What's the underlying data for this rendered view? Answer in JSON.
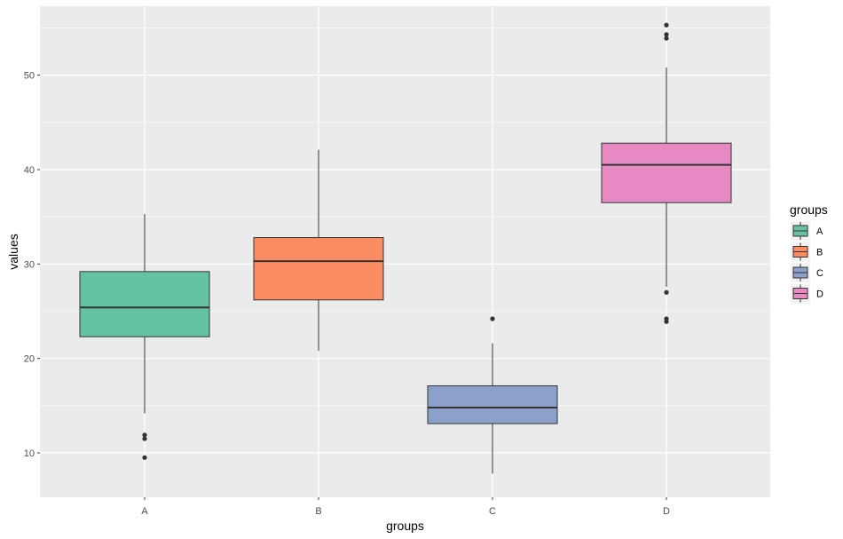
{
  "chart_data": {
    "type": "boxplot",
    "title": "",
    "xlabel": "groups",
    "ylabel": "values",
    "categories": [
      "A",
      "B",
      "C",
      "D"
    ],
    "ylim": [
      5.3,
      57.3
    ],
    "y_ticks": [
      10,
      20,
      30,
      40,
      50
    ],
    "grid": true,
    "panel_background": "#ebebeb",
    "legend": {
      "title": "groups",
      "position": "right",
      "items": [
        "A",
        "B",
        "C",
        "D"
      ]
    },
    "colors": [
      "#66c2a5",
      "#fc8d62",
      "#8da0cb",
      "#e78ac3"
    ],
    "boxes": [
      {
        "group": "A",
        "whisker_low": 14.2,
        "q1": 22.3,
        "median": 25.4,
        "q3": 29.2,
        "whisker_high": 35.3,
        "outliers": [
          11.9,
          11.5,
          9.5
        ]
      },
      {
        "group": "B",
        "whisker_low": 20.8,
        "q1": 26.2,
        "median": 30.3,
        "q3": 32.8,
        "whisker_high": 42.1,
        "outliers": []
      },
      {
        "group": "C",
        "whisker_low": 7.8,
        "q1": 13.1,
        "median": 14.8,
        "q3": 17.1,
        "whisker_high": 21.6,
        "outliers": [
          24.2
        ]
      },
      {
        "group": "D",
        "whisker_low": 27.6,
        "q1": 36.5,
        "median": 40.5,
        "q3": 42.8,
        "whisker_high": 50.8,
        "outliers": [
          55.3,
          54.3,
          53.9,
          27.0,
          24.2,
          23.9
        ]
      }
    ]
  }
}
